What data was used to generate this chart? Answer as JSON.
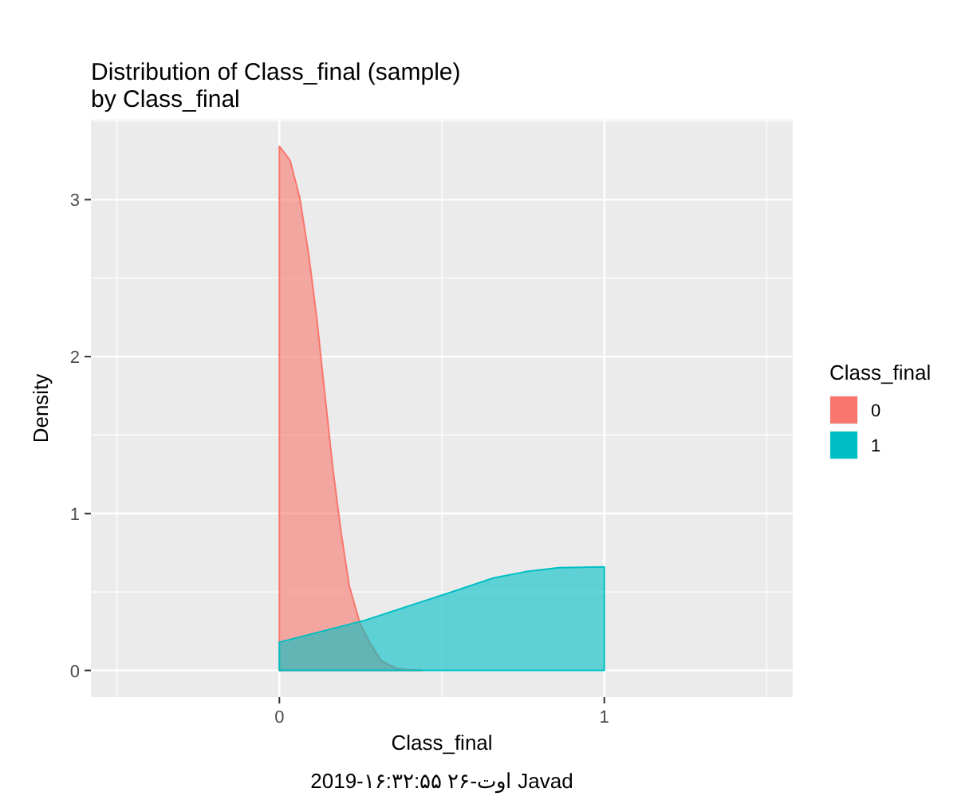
{
  "chart_data": {
    "type": "area",
    "title": "Distribution of Class_final (sample)\nby Class_final",
    "xlabel": "Class_final",
    "ylabel": "Density",
    "legend_title": "Class_final",
    "legend": "right",
    "grid": true,
    "xlim": [
      -0.58,
      1.58
    ],
    "ylim": [
      -0.17,
      3.51
    ],
    "xticks": [
      0,
      1
    ],
    "yticks": [
      0,
      1,
      2,
      3
    ],
    "series": [
      {
        "name": "0",
        "color": "#f8766d",
        "x": [
          0,
          0.033,
          0.063,
          0.091,
          0.116,
          0.14,
          0.165,
          0.19,
          0.215,
          0.248,
          0.28,
          0.314,
          0.364,
          0.44
        ],
        "values": [
          3.34,
          3.25,
          3.01,
          2.64,
          2.23,
          1.76,
          1.28,
          0.88,
          0.54,
          0.3,
          0.17,
          0.06,
          0.01,
          0
        ]
      },
      {
        "name": "1",
        "color": "#00bfc4",
        "x": [
          0,
          0.132,
          0.264,
          0.397,
          0.53,
          0.66,
          0.76,
          0.86,
          1.0
        ],
        "values": [
          0.18,
          0.25,
          0.32,
          0.41,
          0.5,
          0.59,
          0.63,
          0.655,
          0.66
        ]
      }
    ],
    "annotations": [
      "2019-۱۶:۳۲:۵۵ اوت-۲۶ Javad"
    ]
  }
}
